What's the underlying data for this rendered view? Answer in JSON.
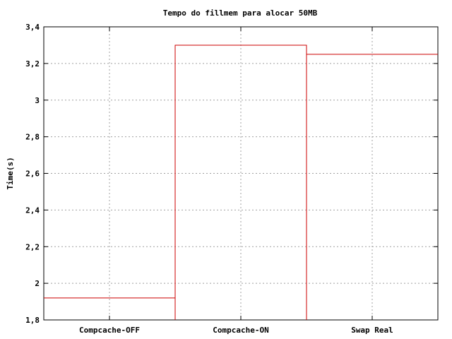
{
  "chart_data": {
    "type": "line",
    "title": "Tempo do fillmem para alocar 50MB",
    "xlabel": "",
    "ylabel": "Time(s)",
    "categories": [
      "Compcache-OFF",
      "Compcache-ON",
      "Swap Real"
    ],
    "series": [
      {
        "values": [
          1.92,
          3.3,
          3.25
        ]
      }
    ],
    "steps": [
      {
        "x": [
          -0.5,
          0.5
        ],
        "y": 1.92
      },
      {
        "x": [
          0.5,
          1.5
        ],
        "y": 3.3
      },
      {
        "x": [
          1.5,
          2.5
        ],
        "y": 3.25
      }
    ],
    "xlim": [
      -0.5,
      2.5
    ],
    "ylim": [
      1.8,
      3.4
    ],
    "yticks": [
      1.8,
      2.0,
      2.2,
      2.4,
      2.6,
      2.8,
      3.0,
      3.2,
      3.4
    ],
    "ytick_labels": [
      "1,8",
      "2",
      "2,2",
      "2,4",
      "2,6",
      "2,8",
      "3",
      "3,2",
      "3,4"
    ],
    "xticks": [
      0,
      1,
      2
    ],
    "grid": true,
    "line_color": "#cc0000"
  }
}
